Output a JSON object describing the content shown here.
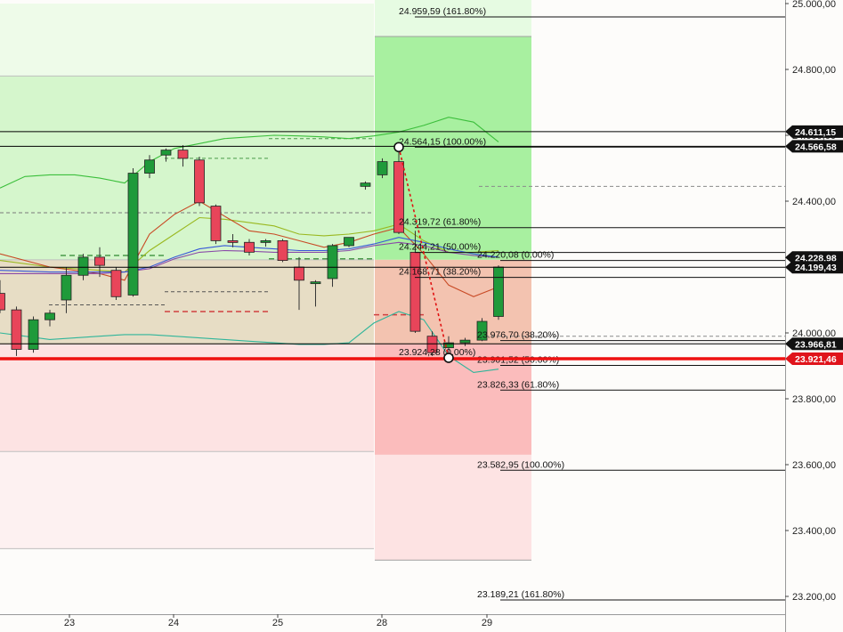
{
  "chart_data": {
    "type": "candlestick",
    "y_axis": {
      "range": [
        23190,
        25000
      ],
      "ticks": [
        {
          "value": 25000,
          "label": "25.000,00"
        },
        {
          "value": 24800,
          "label": "24.800,00"
        },
        {
          "value": 24600,
          "label": "24.600,00"
        },
        {
          "value": 24400,
          "label": "24.400,00"
        },
        {
          "value": 24200,
          "label": "24.200,00"
        },
        {
          "value": 24000,
          "label": "24.000,00"
        },
        {
          "value": 23800,
          "label": "23.800,00"
        },
        {
          "value": 23600,
          "label": "23.600,00"
        },
        {
          "value": 23400,
          "label": "23.400,00"
        },
        {
          "value": 23200,
          "label": "23.200,00"
        }
      ]
    },
    "x_axis": {
      "range": [
        0,
        10.5
      ],
      "ticks": [
        {
          "value": 1.5,
          "label": "23"
        },
        {
          "value": 3.5,
          "label": "24"
        },
        {
          "value": 5.5,
          "label": "25"
        },
        {
          "value": 7.5,
          "label": "28"
        },
        {
          "value": 9.5,
          "label": "29"
        }
      ]
    },
    "candles": [
      {
        "t": 0.0,
        "o": 24120,
        "h": 24160,
        "l": 24060,
        "c": 24070
      },
      {
        "t": 0.33,
        "o": 24070,
        "h": 24080,
        "l": 23930,
        "c": 23950
      },
      {
        "t": 0.67,
        "o": 23950,
        "h": 24050,
        "l": 23940,
        "c": 24040
      },
      {
        "t": 1.0,
        "o": 24040,
        "h": 24070,
        "l": 24020,
        "c": 24060
      },
      {
        "t": 1.33,
        "o": 24100,
        "h": 24200,
        "l": 24060,
        "c": 24175
      },
      {
        "t": 1.67,
        "o": 24175,
        "h": 24240,
        "l": 24160,
        "c": 24230
      },
      {
        "t": 2.0,
        "o": 24230,
        "h": 24260,
        "l": 24170,
        "c": 24205
      },
      {
        "t": 2.33,
        "o": 24190,
        "h": 24200,
        "l": 24100,
        "c": 24110
      },
      {
        "t": 2.67,
        "o": 24115,
        "h": 24500,
        "l": 24110,
        "c": 24485
      },
      {
        "t": 3.0,
        "o": 24485,
        "h": 24540,
        "l": 24470,
        "c": 24525
      },
      {
        "t": 3.33,
        "o": 24540,
        "h": 24560,
        "l": 24520,
        "c": 24555
      },
      {
        "t": 3.67,
        "o": 24555,
        "h": 24570,
        "l": 24505,
        "c": 24530
      },
      {
        "t": 4.0,
        "o": 24525,
        "h": 24535,
        "l": 24385,
        "c": 24395
      },
      {
        "t": 4.33,
        "o": 24385,
        "h": 24390,
        "l": 24270,
        "c": 24280
      },
      {
        "t": 4.67,
        "o": 24280,
        "h": 24300,
        "l": 24260,
        "c": 24275
      },
      {
        "t": 5.0,
        "o": 24275,
        "h": 24285,
        "l": 24235,
        "c": 24245
      },
      {
        "t": 5.33,
        "o": 24275,
        "h": 24285,
        "l": 24262,
        "c": 24280
      },
      {
        "t": 5.67,
        "o": 24280,
        "h": 24285,
        "l": 24215,
        "c": 24220
      },
      {
        "t": 6.0,
        "o": 24200,
        "h": 24230,
        "l": 24070,
        "c": 24160
      },
      {
        "t": 6.33,
        "o": 24155,
        "h": 24160,
        "l": 24080,
        "c": 24155
      },
      {
        "t": 6.67,
        "o": 24165,
        "h": 24270,
        "l": 24140,
        "c": 24265
      },
      {
        "t": 7.0,
        "o": 24265,
        "h": 24290,
        "l": 24260,
        "c": 24290
      },
      {
        "t": 7.33,
        "o": 24445,
        "h": 24460,
        "l": 24435,
        "c": 24455
      },
      {
        "t": 7.67,
        "o": 24480,
        "h": 24530,
        "l": 24470,
        "c": 24520
      },
      {
        "t": 8.0,
        "o": 24520,
        "h": 24565,
        "l": 24300,
        "c": 24305
      },
      {
        "t": 8.33,
        "o": 24245,
        "h": 24310,
        "l": 24000,
        "c": 24005
      },
      {
        "t": 8.67,
        "o": 23990,
        "h": 24005,
        "l": 23930,
        "c": 23940
      },
      {
        "t": 9.0,
        "o": 23955,
        "h": 23990,
        "l": 23924,
        "c": 23970
      },
      {
        "t": 9.33,
        "o": 23970,
        "h": 23985,
        "l": 23960,
        "c": 23978
      },
      {
        "t": 9.67,
        "o": 23978,
        "h": 24045,
        "l": 23975,
        "c": 24035
      },
      {
        "t": 10.0,
        "o": 24050,
        "h": 24205,
        "l": 24040,
        "c": 24200
      }
    ],
    "indicators": {
      "upper_band": [
        [
          0,
          24440
        ],
        [
          0.5,
          24475
        ],
        [
          1,
          24480
        ],
        [
          1.5,
          24480
        ],
        [
          2,
          24470
        ],
        [
          2.5,
          24455
        ],
        [
          3,
          24520
        ],
        [
          3.5,
          24560
        ],
        [
          4,
          24575
        ],
        [
          4.5,
          24590
        ],
        [
          5,
          24595
        ],
        [
          5.5,
          24600
        ],
        [
          6,
          24598
        ],
        [
          6.5,
          24595
        ],
        [
          7,
          24590
        ],
        [
          7.5,
          24598
        ],
        [
          8,
          24610
        ],
        [
          8.5,
          24630
        ],
        [
          9,
          24655
        ],
        [
          9.5,
          24640
        ],
        [
          10,
          24580
        ]
      ],
      "lower_band": [
        [
          0,
          24000
        ],
        [
          0.5,
          23990
        ],
        [
          1,
          23980
        ],
        [
          1.5,
          23985
        ],
        [
          2,
          23990
        ],
        [
          2.5,
          23995
        ],
        [
          3,
          23995
        ],
        [
          3.5,
          23990
        ],
        [
          4,
          23985
        ],
        [
          4.5,
          23980
        ],
        [
          5,
          23975
        ],
        [
          5.5,
          23970
        ],
        [
          6,
          23965
        ],
        [
          6.5,
          23965
        ],
        [
          7,
          23970
        ],
        [
          7.5,
          24030
        ],
        [
          8,
          24065
        ],
        [
          8.5,
          24040
        ],
        [
          9,
          23930
        ],
        [
          9.5,
          23880
        ],
        [
          10,
          23890
        ]
      ],
      "ma_orange": [
        [
          0,
          24240
        ],
        [
          1,
          24200
        ],
        [
          2,
          24180
        ],
        [
          2.5,
          24160
        ],
        [
          3,
          24300
        ],
        [
          3.5,
          24360
        ],
        [
          4,
          24400
        ],
        [
          4.5,
          24355
        ],
        [
          5,
          24310
        ],
        [
          5.5,
          24300
        ],
        [
          6,
          24280
        ],
        [
          6.5,
          24260
        ],
        [
          7,
          24275
        ],
        [
          7.5,
          24300
        ],
        [
          8,
          24320
        ],
        [
          8.5,
          24240
        ],
        [
          9,
          24145
        ],
        [
          9.5,
          24110
        ],
        [
          10,
          24140
        ]
      ],
      "ma_olive": [
        [
          0,
          24220
        ],
        [
          1,
          24200
        ],
        [
          2,
          24190
        ],
        [
          2.5,
          24185
        ],
        [
          3,
          24250
        ],
        [
          3.5,
          24300
        ],
        [
          4,
          24350
        ],
        [
          4.5,
          24345
        ],
        [
          5,
          24335
        ],
        [
          5.5,
          24325
        ],
        [
          6,
          24300
        ],
        [
          6.5,
          24295
        ],
        [
          7,
          24300
        ],
        [
          7.5,
          24310
        ],
        [
          8,
          24330
        ],
        [
          8.5,
          24280
        ],
        [
          9,
          24245
        ],
        [
          9.5,
          24245
        ],
        [
          10,
          24250
        ]
      ],
      "ma_blue": [
        [
          0,
          24190
        ],
        [
          1,
          24185
        ],
        [
          2,
          24185
        ],
        [
          2.5,
          24185
        ],
        [
          3,
          24200
        ],
        [
          3.5,
          24230
        ],
        [
          4,
          24255
        ],
        [
          4.5,
          24265
        ],
        [
          5,
          24260
        ],
        [
          5.5,
          24255
        ],
        [
          6,
          24250
        ],
        [
          6.5,
          24250
        ],
        [
          7,
          24255
        ],
        [
          7.5,
          24270
        ],
        [
          8,
          24290
        ],
        [
          8.5,
          24275
        ],
        [
          9,
          24255
        ],
        [
          9.5,
          24240
        ],
        [
          10,
          24230
        ]
      ],
      "ma_purple": [
        [
          0,
          24180
        ],
        [
          1,
          24180
        ],
        [
          2,
          24180
        ],
        [
          2.5,
          24185
        ],
        [
          3,
          24195
        ],
        [
          3.5,
          24225
        ],
        [
          4,
          24245
        ],
        [
          4.5,
          24250
        ],
        [
          5,
          24248
        ],
        [
          5.5,
          24245
        ],
        [
          6,
          24245
        ],
        [
          6.5,
          24245
        ],
        [
          7,
          24250
        ],
        [
          7.5,
          24265
        ],
        [
          8,
          24275
        ],
        [
          8.5,
          24265
        ],
        [
          9,
          24245
        ],
        [
          9.5,
          24235
        ],
        [
          10,
          24230
        ]
      ]
    },
    "fib_upper": {
      "x_start": 7.5,
      "label_x": 8.0,
      "levels": [
        {
          "price": 24959.59,
          "label": "24.959,59 (161.80%)"
        },
        {
          "price": 24564.15,
          "label": "24.564,15 (100.00%)"
        },
        {
          "price": 24319.72,
          "label": "24.319,72 (61.80%)"
        },
        {
          "price": 24244.21,
          "label": "24.244,21 (50.00%)"
        },
        {
          "price": 24168.71,
          "label": "24.168,71 (38.20%)"
        },
        {
          "price": 23924.28,
          "label": "23.924,28 (0.00%)"
        }
      ]
    },
    "fib_lower": {
      "x_start": 9.0,
      "label_x": 9.5,
      "levels": [
        {
          "price": 24220.08,
          "label": "24.220,08 (0.00%)"
        },
        {
          "price": 23976.7,
          "label": "23.976,70 (38.20%)"
        },
        {
          "price": 23901.52,
          "label": "23.901,52 (50.00%)"
        },
        {
          "price": 23826.33,
          "label": "23.826,33 (61.80%)"
        },
        {
          "price": 23582.95,
          "label": "23.582,95 (100.00%)"
        },
        {
          "price": 23189.21,
          "label": "23.189,21 (161.80%)"
        }
      ]
    },
    "horizontal_lines": [
      {
        "price": 24611.15,
        "color": "#000000"
      },
      {
        "price": 24566.58,
        "color": "#000000"
      },
      {
        "price": 24199.43,
        "color": "#000000"
      },
      {
        "price": 23966.81,
        "color": "#000000"
      }
    ],
    "price_tags": [
      {
        "price": 24611.15,
        "label": "24.611,15",
        "color": "#111111"
      },
      {
        "price": 24566.58,
        "label": "24.566,58",
        "color": "#111111"
      },
      {
        "price": 24228.98,
        "label": "24.228,98",
        "color": "#111111"
      },
      {
        "price": 24199.43,
        "label": "24.199,43",
        "color": "#111111"
      },
      {
        "price": 23966.81,
        "label": "23.966,81",
        "color": "#111111"
      },
      {
        "price": 23921.46,
        "label": "23.921,46",
        "color": "#e0141b"
      }
    ],
    "support_line": {
      "price": 23921.46,
      "color": "#ee1111"
    },
    "swing": {
      "from": {
        "t": 8.0,
        "price": 24564.15
      },
      "to": {
        "t": 9.0,
        "price": 23924.28
      }
    },
    "colors": {
      "bull": "#1f9a3a",
      "bear": "#e8455a",
      "upper_band": "#3cbf3c",
      "lower_band": "#2fb59a",
      "ma_orange": "#c84a25",
      "ma_olive": "#9ab820",
      "ma_blue": "#3858d8",
      "ma_purple": "#8a4aa8",
      "zone_green_light": "#eefbe9",
      "zone_green": "#d5f6cc",
      "zone_tan": "#e7ddc5",
      "zone_red": "#fde3e3",
      "zone_red_light": "#fdf1f1",
      "fib_green": "#a8f0a0",
      "fib_red": "#fbbcbc"
    }
  }
}
